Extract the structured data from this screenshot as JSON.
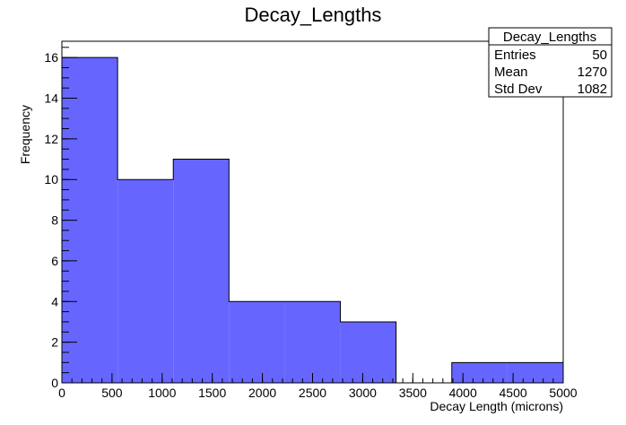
{
  "chart_data": {
    "type": "bar",
    "title": "Decay_Lengths",
    "xlabel": "Decay Length (microns)",
    "ylabel": "Frequency",
    "xlim": [
      0,
      5000
    ],
    "ylim": [
      0,
      16.8
    ],
    "x_ticks": [
      0,
      500,
      1000,
      1500,
      2000,
      2500,
      3000,
      3500,
      4000,
      4500,
      5000
    ],
    "y_ticks": [
      0,
      2,
      4,
      6,
      8,
      10,
      12,
      14,
      16
    ],
    "bin_edges": [
      0,
      555.6,
      1111.1,
      1666.7,
      2222.2,
      2777.8,
      3333.3,
      3888.9,
      4444.4,
      5000
    ],
    "values": [
      16,
      10,
      11,
      4,
      4,
      3,
      0,
      1,
      1
    ],
    "fill_color": "#6666ff",
    "grid": false
  },
  "stats": {
    "title": "Decay_Lengths",
    "rows": [
      {
        "label": "Entries",
        "value": "50"
      },
      {
        "label": "Mean",
        "value": "1270"
      },
      {
        "label": "Std Dev",
        "value": "1082"
      }
    ]
  }
}
